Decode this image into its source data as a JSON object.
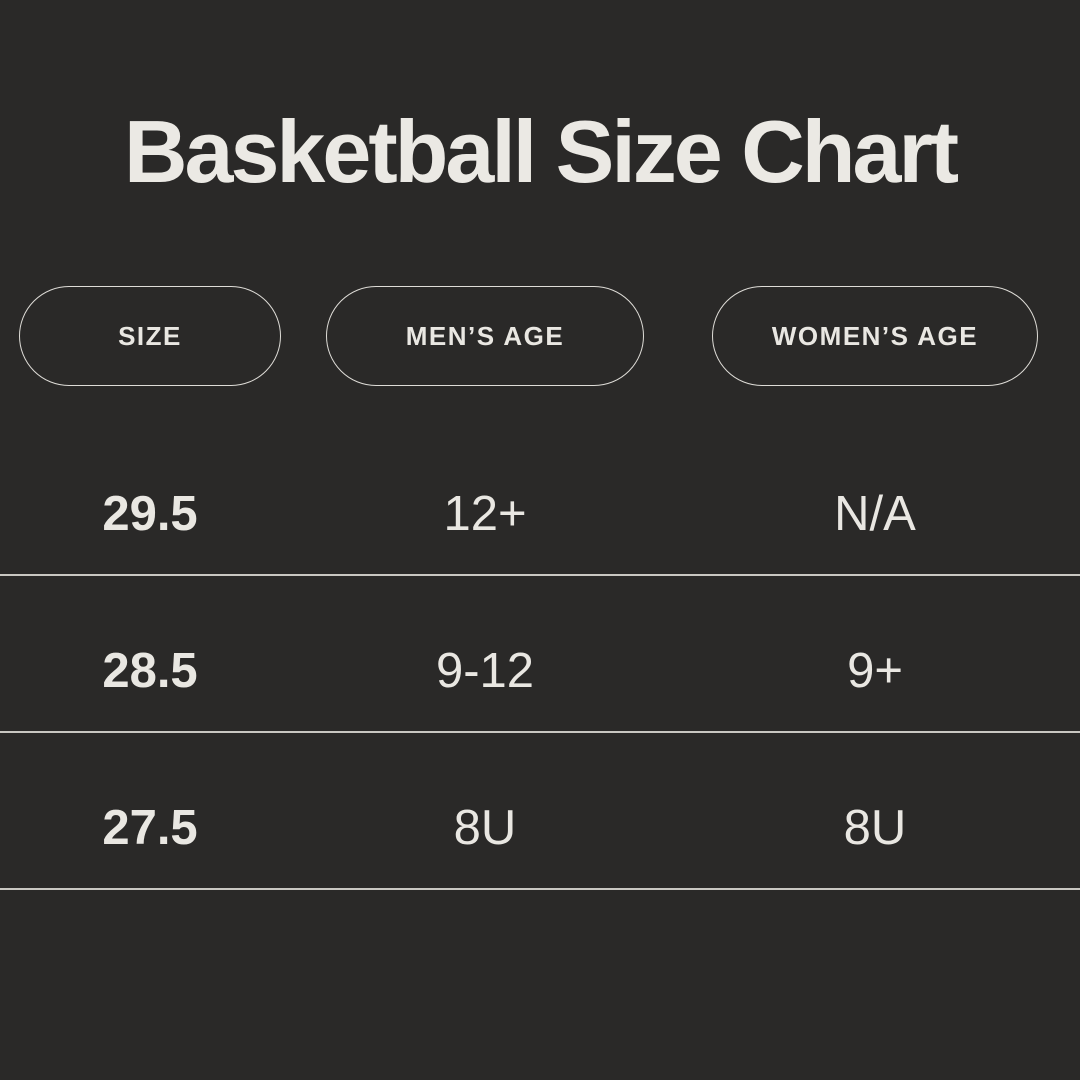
{
  "colors": {
    "background": "#2a2928",
    "text": "#e9e7e2",
    "title": "#ebe9e4",
    "divider": "#c9c7c2",
    "pill_border": "#dedcd7"
  },
  "title": "Basketball Size Chart",
  "table": {
    "headers": [
      "SIZE",
      "MEN’S AGE",
      "WOMEN’S AGE"
    ],
    "rows": [
      [
        "29.5",
        "12+",
        "N/A"
      ],
      [
        "28.5",
        "9-12",
        "9+"
      ],
      [
        "27.5",
        "8U",
        "8U"
      ]
    ]
  },
  "chart_data": {
    "type": "table",
    "title": "Basketball Size Chart",
    "columns": [
      "SIZE",
      "MEN’S AGE",
      "WOMEN’S AGE"
    ],
    "rows": [
      [
        "29.5",
        "12+",
        "N/A"
      ],
      [
        "28.5",
        "9-12",
        "9+"
      ],
      [
        "27.5",
        "8U",
        "8U"
      ]
    ]
  }
}
